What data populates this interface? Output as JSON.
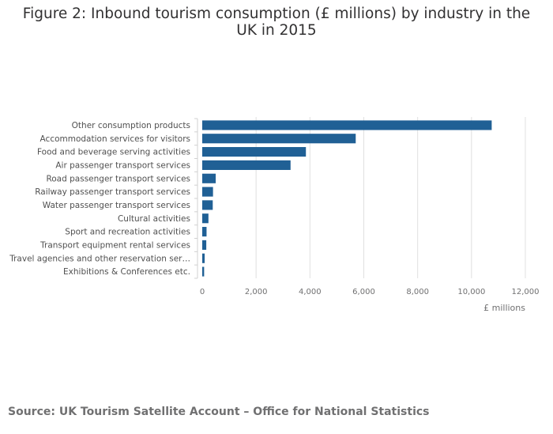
{
  "chart_data": {
    "type": "bar",
    "orientation": "horizontal",
    "title": "Figure 2: Inbound tourism consumption (£ millions) by industry in the UK in 2015",
    "categories": [
      "Other consumption products",
      "Accommodation services for visitors",
      "Food and beverage serving activities",
      "Air passenger transport services",
      "Road passenger transport services",
      "Railway passenger transport services",
      "Water passenger transport services",
      "Cultural activities",
      "Sport and recreation activities",
      "Transport equipment rental services",
      "Travel agencies and other reservation ser…",
      "Exhibitions & Conferences etc."
    ],
    "values": [
      10750,
      5700,
      3850,
      3280,
      500,
      400,
      390,
      230,
      160,
      150,
      90,
      70
    ],
    "xlabel": "£ millions",
    "ylabel": "",
    "xlim": [
      0,
      12000
    ],
    "xticks": [
      0,
      2000,
      4000,
      6000,
      8000,
      10000,
      12000
    ],
    "xtick_labels": [
      "0",
      "2,000",
      "4,000",
      "6,000",
      "8,000",
      "10,000",
      "12,000"
    ],
    "grid": true,
    "bar_color": "#206095"
  },
  "source": "Source: UK Tourism Satellite Account – Office for National Statistics"
}
